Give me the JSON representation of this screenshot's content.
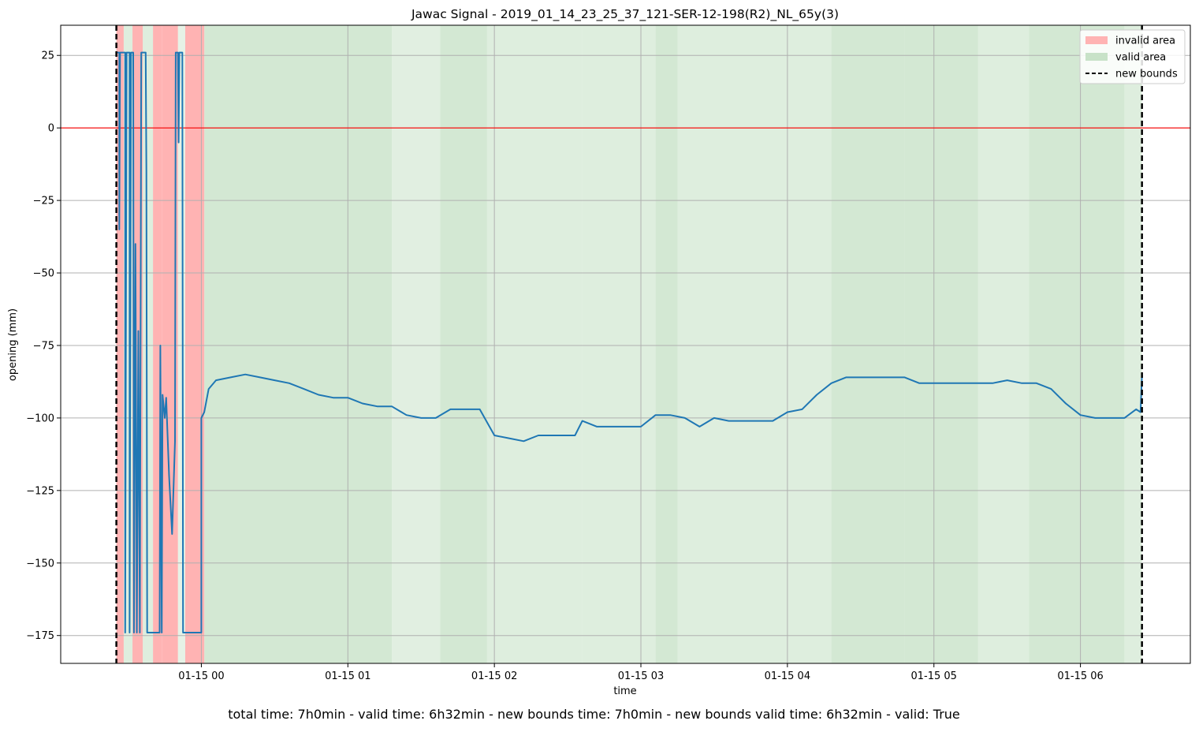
{
  "chart_data": {
    "type": "line",
    "title": "Jawac Signal - 2019_01_14_23_25_37_121-SER-12-198(R2)_NL_65y(3)",
    "xlabel": "time",
    "ylabel": "opening (mm)",
    "x_ticks": [
      "01-15 00",
      "01-15 01",
      "01-15 02",
      "01-15 03",
      "01-15 04",
      "01-15 05",
      "01-15 06"
    ],
    "y_ticks": [
      "25",
      "0",
      "−25",
      "−50",
      "−75",
      "−100",
      "−125",
      "−150",
      "−175"
    ],
    "y_tick_values": [
      25,
      0,
      -25,
      -50,
      -75,
      -100,
      -125,
      -150,
      -175
    ],
    "x_range_hours": [
      -0.96,
      6.75
    ],
    "ylim": [
      -184.6,
      35.4
    ],
    "grid": true,
    "legend_position": "top-right",
    "reference_line": {
      "y": 0,
      "color": "#ff0000"
    },
    "new_bounds": [
      -0.58,
      6.42
    ],
    "legend": [
      {
        "label": "invalid area",
        "kind": "patch",
        "color": "#ffb3b3"
      },
      {
        "label": "valid area",
        "kind": "patch",
        "color": "#c8e2c8"
      },
      {
        "label": "new bounds",
        "kind": "dashed",
        "color": "#000000"
      }
    ],
    "invalid_areas": [
      [
        -0.58,
        -0.53
      ],
      [
        -0.47,
        -0.4
      ],
      [
        -0.33,
        -0.27
      ],
      [
        -0.27,
        -0.16
      ],
      [
        -0.11,
        0.02
      ]
    ],
    "valid_areas": [
      [
        -0.53,
        -0.47,
        0.6
      ],
      [
        -0.4,
        -0.33,
        0.6
      ],
      [
        -0.16,
        -0.11,
        0.45
      ],
      [
        0.02,
        0.42,
        0.8
      ],
      [
        0.42,
        1.3,
        0.8
      ],
      [
        1.3,
        1.63,
        0.55
      ],
      [
        1.63,
        1.95,
        0.8
      ],
      [
        1.95,
        2.6,
        0.6
      ],
      [
        2.6,
        3.1,
        0.6
      ],
      [
        3.1,
        3.25,
        0.8
      ],
      [
        3.25,
        4.3,
        0.6
      ],
      [
        4.3,
        4.8,
        0.8
      ],
      [
        4.8,
        5.3,
        0.8
      ],
      [
        5.3,
        5.65,
        0.6
      ],
      [
        5.65,
        6.3,
        0.8
      ],
      [
        6.3,
        6.42,
        0.6
      ]
    ],
    "series": [
      {
        "color": "#1f77b4",
        "points": [
          [
            -0.58,
            26
          ],
          [
            -0.56,
            26
          ],
          [
            -0.56,
            -35
          ],
          [
            -0.555,
            26
          ],
          [
            -0.52,
            26
          ],
          [
            -0.52,
            -174
          ],
          [
            -0.51,
            26
          ],
          [
            -0.49,
            26
          ],
          [
            -0.49,
            -174
          ],
          [
            -0.48,
            26
          ],
          [
            -0.465,
            26
          ],
          [
            -0.46,
            -174
          ],
          [
            -0.45,
            -40
          ],
          [
            -0.44,
            -174
          ],
          [
            -0.43,
            -70
          ],
          [
            -0.42,
            -174
          ],
          [
            -0.41,
            26
          ],
          [
            -0.38,
            26
          ],
          [
            -0.375,
            -15
          ],
          [
            -0.37,
            -174
          ],
          [
            -0.35,
            -174
          ],
          [
            -0.34,
            -174
          ],
          [
            -0.31,
            -174
          ],
          [
            -0.285,
            -174
          ],
          [
            -0.28,
            -75
          ],
          [
            -0.27,
            -174
          ],
          [
            -0.265,
            -92
          ],
          [
            -0.25,
            -100
          ],
          [
            -0.24,
            -93
          ],
          [
            -0.22,
            -120
          ],
          [
            -0.2,
            -140
          ],
          [
            -0.18,
            -108
          ],
          [
            -0.175,
            26
          ],
          [
            -0.16,
            26
          ],
          [
            -0.155,
            -5
          ],
          [
            -0.15,
            26
          ],
          [
            -0.13,
            26
          ],
          [
            -0.125,
            -174
          ],
          [
            -0.1,
            -174
          ],
          [
            0.0,
            -174
          ],
          [
            0.0,
            -100
          ],
          [
            0.02,
            -98
          ],
          [
            0.05,
            -90
          ],
          [
            0.1,
            -87
          ],
          [
            0.2,
            -86
          ],
          [
            0.3,
            -85
          ],
          [
            0.4,
            -86
          ],
          [
            0.5,
            -87
          ],
          [
            0.6,
            -88
          ],
          [
            0.7,
            -90
          ],
          [
            0.8,
            -92
          ],
          [
            0.9,
            -93
          ],
          [
            1.0,
            -93
          ],
          [
            1.1,
            -95
          ],
          [
            1.2,
            -96
          ],
          [
            1.3,
            -96
          ],
          [
            1.4,
            -99
          ],
          [
            1.5,
            -100
          ],
          [
            1.6,
            -100
          ],
          [
            1.7,
            -97
          ],
          [
            1.8,
            -97
          ],
          [
            1.9,
            -97
          ],
          [
            2.0,
            -106
          ],
          [
            2.1,
            -107
          ],
          [
            2.2,
            -108
          ],
          [
            2.3,
            -106
          ],
          [
            2.4,
            -106
          ],
          [
            2.55,
            -106
          ],
          [
            2.6,
            -101
          ],
          [
            2.7,
            -103
          ],
          [
            2.8,
            -103
          ],
          [
            2.9,
            -103
          ],
          [
            3.0,
            -103
          ],
          [
            3.1,
            -99
          ],
          [
            3.2,
            -99
          ],
          [
            3.3,
            -100
          ],
          [
            3.4,
            -103
          ],
          [
            3.5,
            -100
          ],
          [
            3.6,
            -101
          ],
          [
            3.7,
            -101
          ],
          [
            3.8,
            -101
          ],
          [
            3.9,
            -101
          ],
          [
            4.0,
            -98
          ],
          [
            4.1,
            -97
          ],
          [
            4.2,
            -92
          ],
          [
            4.3,
            -88
          ],
          [
            4.4,
            -86
          ],
          [
            4.5,
            -86
          ],
          [
            4.6,
            -86
          ],
          [
            4.7,
            -86
          ],
          [
            4.8,
            -86
          ],
          [
            4.9,
            -88
          ],
          [
            5.0,
            -88
          ],
          [
            5.1,
            -88
          ],
          [
            5.2,
            -88
          ],
          [
            5.3,
            -88
          ],
          [
            5.4,
            -88
          ],
          [
            5.5,
            -87
          ],
          [
            5.6,
            -88
          ],
          [
            5.7,
            -88
          ],
          [
            5.8,
            -90
          ],
          [
            5.9,
            -95
          ],
          [
            6.0,
            -99
          ],
          [
            6.1,
            -100
          ],
          [
            6.2,
            -100
          ],
          [
            6.3,
            -100
          ],
          [
            6.38,
            -97
          ],
          [
            6.41,
            -98
          ],
          [
            6.42,
            -85
          ]
        ]
      }
    ]
  },
  "footer": {
    "summary": "total time: 7h0min - valid time: 6h32min - new bounds time: 7h0min - new bounds valid time: 6h32min - valid: True"
  }
}
